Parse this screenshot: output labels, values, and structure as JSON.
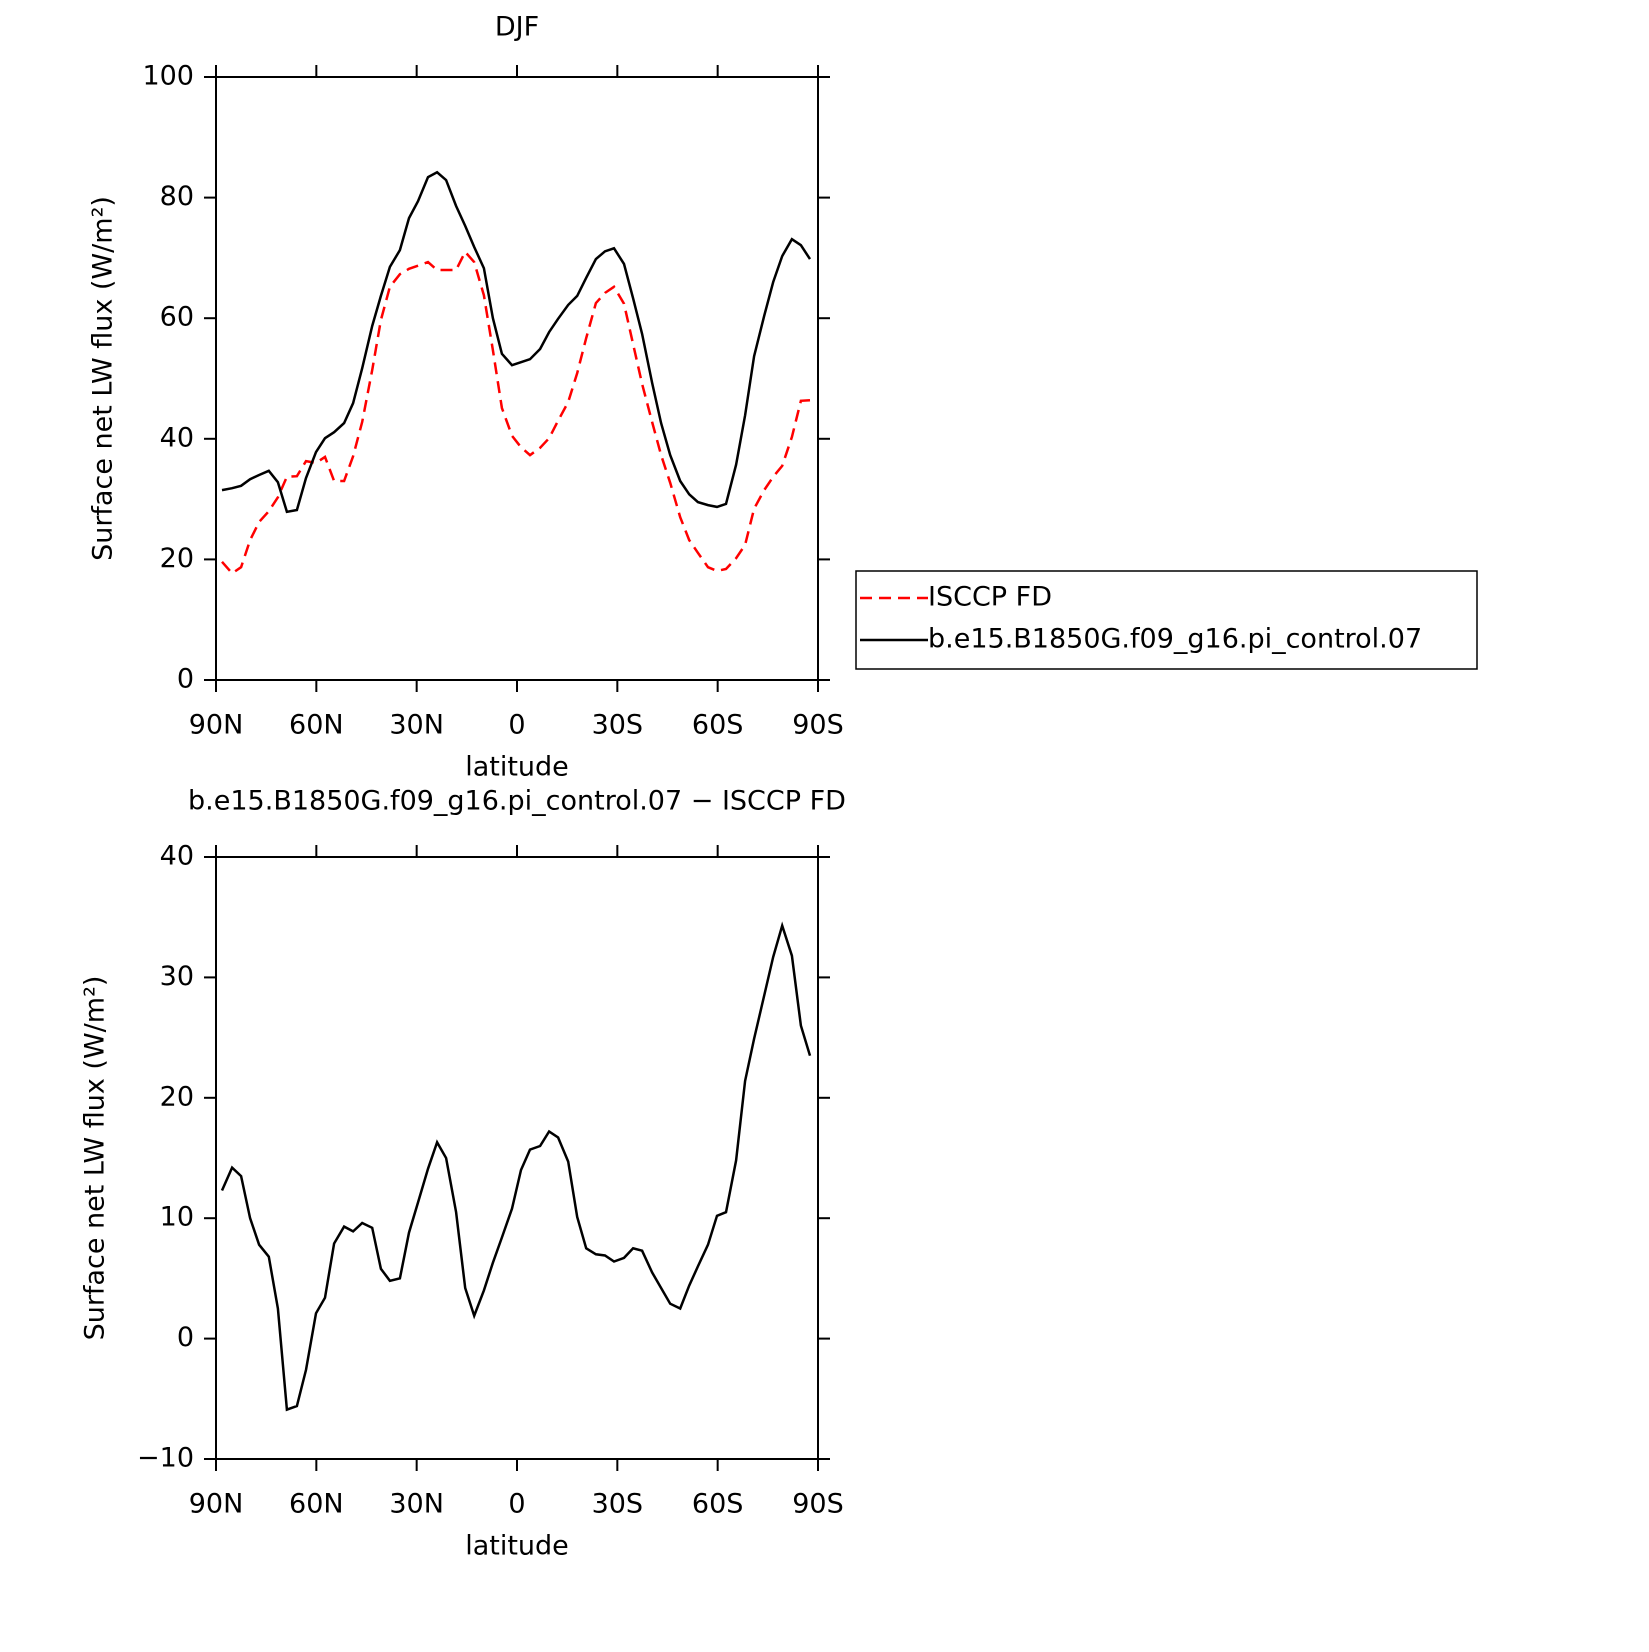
{
  "chart_data": [
    {
      "type": "line",
      "title": "DJF",
      "xlabel": "latitude",
      "ylabel": "Surface net LW flux (W/m²)",
      "x": [
        88.2,
        85.2,
        82.5,
        79.8,
        77.1,
        74.2,
        71.5,
        68.8,
        65.8,
        63.1,
        60.1,
        57.4,
        54.7,
        51.7,
        49.0,
        46.3,
        43.3,
        40.7,
        38.0,
        35.0,
        32.3,
        29.6,
        26.6,
        23.9,
        21.2,
        18.2,
        15.5,
        12.8,
        9.9,
        7.2,
        4.5,
        1.5,
        -1.2,
        -3.9,
        -6.9,
        -9.6,
        -12.3,
        -15.3,
        -18.0,
        -20.7,
        -23.6,
        -26.3,
        -29.0,
        -32.0,
        -34.7,
        -37.4,
        -40.4,
        -43.1,
        -45.8,
        -48.8,
        -51.5,
        -54.1,
        -57.1,
        -59.8,
        -62.5,
        -65.5,
        -68.2,
        -70.9,
        -73.9,
        -76.6,
        -79.3,
        -82.2,
        -84.9,
        -87.6
      ],
      "series": [
        {
          "name": "ISCCP FD",
          "color": "#ff0000",
          "dash": true,
          "values": [
            19.6,
            17.7,
            18.7,
            23.2,
            26.2,
            28.0,
            30.3,
            33.7,
            33.8,
            36.3,
            36.0,
            37.0,
            33.0,
            33.0,
            37.1,
            42.8,
            51.4,
            59.7,
            65.2,
            67.3,
            68.2,
            68.7,
            69.3,
            68.0,
            68.0,
            68.0,
            71.0,
            69.3,
            63.8,
            54.7,
            45.1,
            40.5,
            38.6,
            37.3,
            38.5,
            40.1,
            43.0,
            46.1,
            50.9,
            56.7,
            62.5,
            64.2,
            65.2,
            62.4,
            55.7,
            49.1,
            42.8,
            37.3,
            32.7,
            27.0,
            23.2,
            21.1,
            18.7,
            18.1,
            18.4,
            20.2,
            22.4,
            28.4,
            31.5,
            33.7,
            35.5,
            40.3,
            46.3,
            46.4
          ]
        },
        {
          "name": "b.e15.B1850G.f09_g16.pi_control.07",
          "color": "#000000",
          "dash": false,
          "values": [
            31.5,
            31.8,
            32.2,
            33.3,
            34.0,
            34.7,
            32.8,
            27.9,
            28.2,
            33.5,
            37.8,
            40.1,
            41.1,
            42.6,
            45.9,
            51.7,
            58.7,
            63.7,
            68.5,
            71.3,
            76.6,
            79.4,
            83.4,
            84.2,
            82.9,
            78.6,
            75.3,
            71.8,
            68.3,
            60.0,
            54.1,
            52.2,
            52.7,
            53.2,
            54.9,
            57.7,
            59.9,
            62.2,
            63.7,
            66.7,
            69.8,
            71.1,
            71.6,
            69.0,
            63.3,
            57.4,
            49.3,
            42.6,
            37.3,
            33.0,
            30.8,
            29.5,
            29.0,
            28.7,
            29.2,
            35.7,
            43.9,
            53.7,
            60.4,
            66.0,
            70.3,
            73.1,
            72.1,
            69.8
          ]
        }
      ],
      "xlim": [
        90,
        -90
      ],
      "xticks": [
        {
          "value": 90,
          "label": "90N"
        },
        {
          "value": 60,
          "label": "60N"
        },
        {
          "value": 30,
          "label": "30N"
        },
        0,
        {
          "value": -30,
          "label": "30S"
        },
        {
          "value": -60,
          "label": "60S"
        },
        {
          "value": -90,
          "label": "90S"
        }
      ],
      "ylim": [
        0,
        100
      ],
      "yticks": [
        0,
        20,
        40,
        60,
        80,
        100
      ],
      "legend": "right"
    },
    {
      "type": "line",
      "title": "b.e15.B1850G.f09_g16.pi_control.07 − ISCCP FD",
      "xlabel": "latitude",
      "ylabel": "Surface net LW flux (W/m²)",
      "x": [
        88.2,
        85.2,
        82.5,
        79.8,
        77.1,
        74.2,
        71.5,
        68.8,
        65.8,
        63.1,
        60.1,
        57.4,
        54.7,
        51.7,
        49.0,
        46.3,
        43.3,
        40.7,
        38.0,
        35.0,
        32.3,
        29.6,
        26.6,
        23.9,
        21.2,
        18.2,
        15.5,
        12.8,
        9.9,
        7.2,
        4.5,
        1.5,
        -1.2,
        -3.9,
        -6.9,
        -9.6,
        -12.3,
        -15.3,
        -18.0,
        -20.7,
        -23.6,
        -26.3,
        -29.0,
        -32.0,
        -34.7,
        -37.4,
        -40.4,
        -43.1,
        -45.8,
        -48.8,
        -51.5,
        -54.1,
        -57.1,
        -59.8,
        -62.5,
        -65.5,
        -68.2,
        -70.9,
        -73.9,
        -76.6,
        -79.3,
        -82.2,
        -84.9,
        -87.6
      ],
      "series": [
        {
          "color": "#000000",
          "dash": false,
          "values": [
            12.3,
            14.2,
            13.5,
            10.0,
            7.8,
            6.8,
            2.5,
            -5.9,
            -5.6,
            -2.6,
            2.1,
            3.4,
            7.9,
            9.3,
            8.9,
            9.6,
            9.2,
            5.8,
            4.8,
            5.0,
            8.8,
            11.3,
            14.1,
            16.3,
            15.0,
            10.5,
            4.2,
            1.9,
            4.0,
            6.3,
            8.4,
            10.8,
            14.0,
            15.7,
            16.0,
            17.2,
            16.7,
            14.7,
            10.1,
            7.5,
            7.0,
            6.9,
            6.4,
            6.7,
            7.5,
            7.3,
            5.5,
            4.2,
            2.9,
            2.5,
            4.4,
            6.0,
            7.8,
            10.2,
            10.5,
            14.8,
            21.4,
            24.9,
            28.5,
            31.7,
            34.3,
            31.8,
            26.0,
            23.5
          ]
        }
      ],
      "xlim": [
        90,
        -90
      ],
      "xticks": [
        {
          "value": 90,
          "label": "90N"
        },
        {
          "value": 60,
          "label": "60N"
        },
        {
          "value": 30,
          "label": "30N"
        },
        0,
        {
          "value": -30,
          "label": "30S"
        },
        {
          "value": -60,
          "label": "60S"
        },
        {
          "value": -90,
          "label": "90S"
        }
      ],
      "ylim": [
        -10,
        40
      ],
      "yticks": [
        -10,
        0,
        10,
        20,
        30,
        40
      ]
    }
  ]
}
